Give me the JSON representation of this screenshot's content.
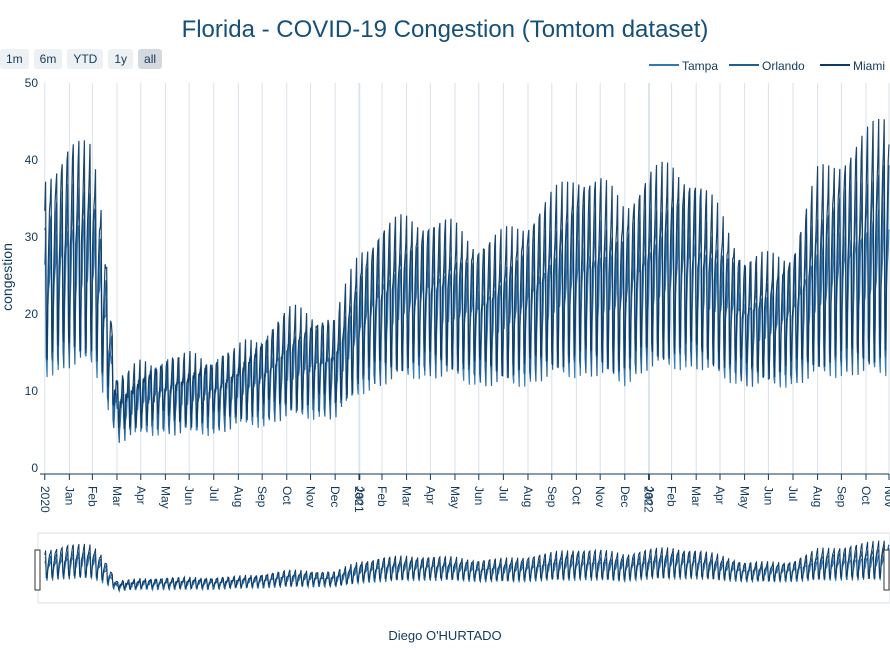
{
  "range_buttons": [
    {
      "label": "1m",
      "active": false
    },
    {
      "label": "6m",
      "active": false
    },
    {
      "label": "YTD",
      "active": false
    },
    {
      "label": "1y",
      "active": false
    },
    {
      "label": "all",
      "active": true
    }
  ],
  "credit": "Diego O'HURTADO",
  "colors": {
    "Tampa": "#2e78b3",
    "Orlando": "#1f5f94",
    "Miami": "#0e3b66",
    "grid": "#d9e2ea",
    "axis": "#123a5c"
  },
  "chart_data": {
    "type": "line",
    "title": "Florida - COVID-19 Congestion (Tomtom dataset)",
    "xlabel": "",
    "ylabel": "congestion",
    "ylim": [
      0,
      50
    ],
    "yticks": [
      0,
      10,
      20,
      30,
      40,
      50
    ],
    "xlim": [
      "2019-12-26",
      "2022-11-30"
    ],
    "xticks": [
      {
        "date": "2020-01-01",
        "label": "2020"
      },
      {
        "date": "2020-02-01",
        "label": "Jan"
      },
      {
        "date": "2020-03-01",
        "label": "Feb"
      },
      {
        "date": "2020-04-01",
        "label": "Mar"
      },
      {
        "date": "2020-05-01",
        "label": "Apr"
      },
      {
        "date": "2020-06-01",
        "label": "May"
      },
      {
        "date": "2020-07-01",
        "label": "Jun"
      },
      {
        "date": "2020-08-01",
        "label": "Jul"
      },
      {
        "date": "2020-09-01",
        "label": "Aug"
      },
      {
        "date": "2020-10-01",
        "label": "Sep"
      },
      {
        "date": "2020-11-01",
        "label": "Oct"
      },
      {
        "date": "2020-12-01",
        "label": "Nov"
      },
      {
        "date": "2021-01-01",
        "label": "Dec"
      },
      {
        "date": "2021-01-31",
        "label": "2021"
      },
      {
        "date": "2021-02-01",
        "label": "Jan"
      },
      {
        "date": "2021-03-01",
        "label": "Feb"
      },
      {
        "date": "2021-04-01",
        "label": "Mar"
      },
      {
        "date": "2021-05-01",
        "label": "Apr"
      },
      {
        "date": "2021-06-01",
        "label": "May"
      },
      {
        "date": "2021-07-01",
        "label": "Jun"
      },
      {
        "date": "2021-08-01",
        "label": "Jul"
      },
      {
        "date": "2021-09-01",
        "label": "Aug"
      },
      {
        "date": "2021-10-01",
        "label": "Sep"
      },
      {
        "date": "2021-11-01",
        "label": "Oct"
      },
      {
        "date": "2021-12-01",
        "label": "Nov"
      },
      {
        "date": "2022-01-01",
        "label": "Dec"
      },
      {
        "date": "2022-01-31",
        "label": "2022"
      },
      {
        "date": "2022-02-01",
        "label": "Jan"
      },
      {
        "date": "2022-03-01",
        "label": "Feb"
      },
      {
        "date": "2022-04-01",
        "label": "Mar"
      },
      {
        "date": "2022-05-01",
        "label": "Apr"
      },
      {
        "date": "2022-06-01",
        "label": "May"
      },
      {
        "date": "2022-07-01",
        "label": "Jun"
      },
      {
        "date": "2022-08-01",
        "label": "Jul"
      },
      {
        "date": "2022-09-01",
        "label": "Aug"
      },
      {
        "date": "2022-10-01",
        "label": "Sep"
      },
      {
        "date": "2022-11-01",
        "label": "Oct"
      },
      {
        "date": "2022-11-30",
        "label": "Nov"
      }
    ],
    "legend": {
      "placement": "top-right"
    },
    "grid": {
      "x": true,
      "y": false
    },
    "range_slider": true,
    "series": [
      {
        "name": "Tampa",
        "weekly": [
          {
            "date": "2020-01-01",
            "high": 28,
            "low": 12
          },
          {
            "date": "2020-02-01",
            "high": 32,
            "low": 13
          },
          {
            "date": "2020-03-01",
            "high": 33,
            "low": 13
          },
          {
            "date": "2020-03-15",
            "high": 25,
            "low": 10
          },
          {
            "date": "2020-04-01",
            "high": 9,
            "low": 4
          },
          {
            "date": "2020-05-01",
            "high": 11,
            "low": 5
          },
          {
            "date": "2020-06-01",
            "high": 12,
            "low": 5
          },
          {
            "date": "2020-07-01",
            "high": 12,
            "low": 5
          },
          {
            "date": "2020-08-01",
            "high": 12,
            "low": 5
          },
          {
            "date": "2020-09-01",
            "high": 13,
            "low": 6
          },
          {
            "date": "2020-10-01",
            "high": 14,
            "low": 6
          },
          {
            "date": "2020-11-01",
            "high": 16,
            "low": 7
          },
          {
            "date": "2020-12-01",
            "high": 16,
            "low": 7
          },
          {
            "date": "2021-01-01",
            "high": 15,
            "low": 7
          },
          {
            "date": "2021-02-01",
            "high": 22,
            "low": 10
          },
          {
            "date": "2021-03-01",
            "high": 25,
            "low": 11
          },
          {
            "date": "2021-04-01",
            "high": 26,
            "low": 12
          },
          {
            "date": "2021-05-01",
            "high": 26,
            "low": 12
          },
          {
            "date": "2021-06-01",
            "high": 25,
            "low": 12
          },
          {
            "date": "2021-07-01",
            "high": 23,
            "low": 11
          },
          {
            "date": "2021-08-01",
            "high": 24,
            "low": 11
          },
          {
            "date": "2021-09-01",
            "high": 25,
            "low": 11
          },
          {
            "date": "2021-10-01",
            "high": 27,
            "low": 12
          },
          {
            "date": "2021-11-01",
            "high": 29,
            "low": 12
          },
          {
            "date": "2021-12-01",
            "high": 28,
            "low": 12
          },
          {
            "date": "2022-01-01",
            "high": 27,
            "low": 11
          },
          {
            "date": "2022-02-01",
            "high": 29,
            "low": 13
          },
          {
            "date": "2022-03-01",
            "high": 31,
            "low": 13
          },
          {
            "date": "2022-04-01",
            "high": 30,
            "low": 13
          },
          {
            "date": "2022-05-01",
            "high": 26,
            "low": 12
          },
          {
            "date": "2022-06-01",
            "high": 22,
            "low": 11
          },
          {
            "date": "2022-07-01",
            "high": 22,
            "low": 11
          },
          {
            "date": "2022-08-01",
            "high": 23,
            "low": 11
          },
          {
            "date": "2022-09-01",
            "high": 28,
            "low": 12
          },
          {
            "date": "2022-10-01",
            "high": 30,
            "low": 12
          },
          {
            "date": "2022-11-01",
            "high": 31,
            "low": 12
          },
          {
            "date": "2022-11-30",
            "high": 34,
            "low": 12
          }
        ]
      },
      {
        "name": "Orlando",
        "weekly": [
          {
            "date": "2020-01-01",
            "high": 32,
            "low": 12
          },
          {
            "date": "2020-02-01",
            "high": 36,
            "low": 13
          },
          {
            "date": "2020-03-01",
            "high": 37,
            "low": 14
          },
          {
            "date": "2020-03-15",
            "high": 28,
            "low": 10
          },
          {
            "date": "2020-04-01",
            "high": 10,
            "low": 4
          },
          {
            "date": "2020-05-01",
            "high": 12,
            "low": 5
          },
          {
            "date": "2020-06-01",
            "high": 13,
            "low": 5
          },
          {
            "date": "2020-07-01",
            "high": 13,
            "low": 5
          },
          {
            "date": "2020-08-01",
            "high": 13,
            "low": 5
          },
          {
            "date": "2020-09-01",
            "high": 14,
            "low": 6
          },
          {
            "date": "2020-10-01",
            "high": 16,
            "low": 6
          },
          {
            "date": "2020-11-01",
            "high": 18,
            "low": 7
          },
          {
            "date": "2020-12-01",
            "high": 18,
            "low": 7
          },
          {
            "date": "2021-01-01",
            "high": 17,
            "low": 7
          },
          {
            "date": "2021-02-01",
            "high": 25,
            "low": 10
          },
          {
            "date": "2021-03-01",
            "high": 28,
            "low": 11
          },
          {
            "date": "2021-04-01",
            "high": 29,
            "low": 12
          },
          {
            "date": "2021-05-01",
            "high": 29,
            "low": 12
          },
          {
            "date": "2021-06-01",
            "high": 28,
            "low": 12
          },
          {
            "date": "2021-07-01",
            "high": 26,
            "low": 11
          },
          {
            "date": "2021-08-01",
            "high": 27,
            "low": 11
          },
          {
            "date": "2021-09-01",
            "high": 28,
            "low": 11
          },
          {
            "date": "2021-10-01",
            "high": 31,
            "low": 12
          },
          {
            "date": "2021-11-01",
            "high": 34,
            "low": 12
          },
          {
            "date": "2021-12-01",
            "high": 32,
            "low": 12
          },
          {
            "date": "2022-01-01",
            "high": 30,
            "low": 11
          },
          {
            "date": "2022-02-01",
            "high": 33,
            "low": 13
          },
          {
            "date": "2022-03-01",
            "high": 35,
            "low": 13
          },
          {
            "date": "2022-04-01",
            "high": 34,
            "low": 13
          },
          {
            "date": "2022-05-01",
            "high": 29,
            "low": 12
          },
          {
            "date": "2022-06-01",
            "high": 25,
            "low": 11
          },
          {
            "date": "2022-07-01",
            "high": 25,
            "low": 11
          },
          {
            "date": "2022-08-01",
            "high": 26,
            "low": 11
          },
          {
            "date": "2022-09-01",
            "high": 33,
            "low": 12
          },
          {
            "date": "2022-10-01",
            "high": 35,
            "low": 12
          },
          {
            "date": "2022-11-01",
            "high": 37,
            "low": 12
          },
          {
            "date": "2022-11-30",
            "high": 41,
            "low": 12
          }
        ]
      },
      {
        "name": "Miami",
        "weekly": [
          {
            "date": "2020-01-01",
            "high": 37,
            "low": 13
          },
          {
            "date": "2020-02-01",
            "high": 42,
            "low": 14
          },
          {
            "date": "2020-03-01",
            "high": 41,
            "low": 15
          },
          {
            "date": "2020-03-15",
            "high": 32,
            "low": 11
          },
          {
            "date": "2020-04-01",
            "high": 11,
            "low": 5
          },
          {
            "date": "2020-05-01",
            "high": 13,
            "low": 6
          },
          {
            "date": "2020-06-01",
            "high": 14,
            "low": 6
          },
          {
            "date": "2020-07-01",
            "high": 14,
            "low": 6
          },
          {
            "date": "2020-08-01",
            "high": 14,
            "low": 6
          },
          {
            "date": "2020-09-01",
            "high": 15,
            "low": 7
          },
          {
            "date": "2020-10-01",
            "high": 17,
            "low": 7
          },
          {
            "date": "2020-11-01",
            "high": 20,
            "low": 8
          },
          {
            "date": "2020-12-01",
            "high": 20,
            "low": 8
          },
          {
            "date": "2021-01-01",
            "high": 19,
            "low": 8
          },
          {
            "date": "2021-02-01",
            "high": 28,
            "low": 11
          },
          {
            "date": "2021-03-01",
            "high": 31,
            "low": 12
          },
          {
            "date": "2021-04-01",
            "high": 32,
            "low": 13
          },
          {
            "date": "2021-05-01",
            "high": 32,
            "low": 13
          },
          {
            "date": "2021-06-01",
            "high": 31,
            "low": 13
          },
          {
            "date": "2021-07-01",
            "high": 29,
            "low": 12
          },
          {
            "date": "2021-08-01",
            "high": 30,
            "low": 12
          },
          {
            "date": "2021-09-01",
            "high": 32,
            "low": 12
          },
          {
            "date": "2021-10-01",
            "high": 35,
            "low": 13
          },
          {
            "date": "2021-11-01",
            "high": 38,
            "low": 13
          },
          {
            "date": "2021-12-01",
            "high": 37,
            "low": 13
          },
          {
            "date": "2022-01-01",
            "high": 34,
            "low": 12
          },
          {
            "date": "2022-02-01",
            "high": 38,
            "low": 14
          },
          {
            "date": "2022-03-01",
            "high": 39,
            "low": 14
          },
          {
            "date": "2022-04-01",
            "high": 37,
            "low": 14
          },
          {
            "date": "2022-05-01",
            "high": 33,
            "low": 13
          },
          {
            "date": "2022-06-01",
            "high": 27,
            "low": 12
          },
          {
            "date": "2022-07-01",
            "high": 27,
            "low": 12
          },
          {
            "date": "2022-08-01",
            "high": 28,
            "low": 12
          },
          {
            "date": "2022-09-01",
            "high": 38,
            "low": 13
          },
          {
            "date": "2022-10-01",
            "high": 40,
            "low": 13
          },
          {
            "date": "2022-11-01",
            "high": 43,
            "low": 13
          },
          {
            "date": "2022-11-30",
            "high": 46,
            "low": 14
          }
        ]
      }
    ]
  }
}
